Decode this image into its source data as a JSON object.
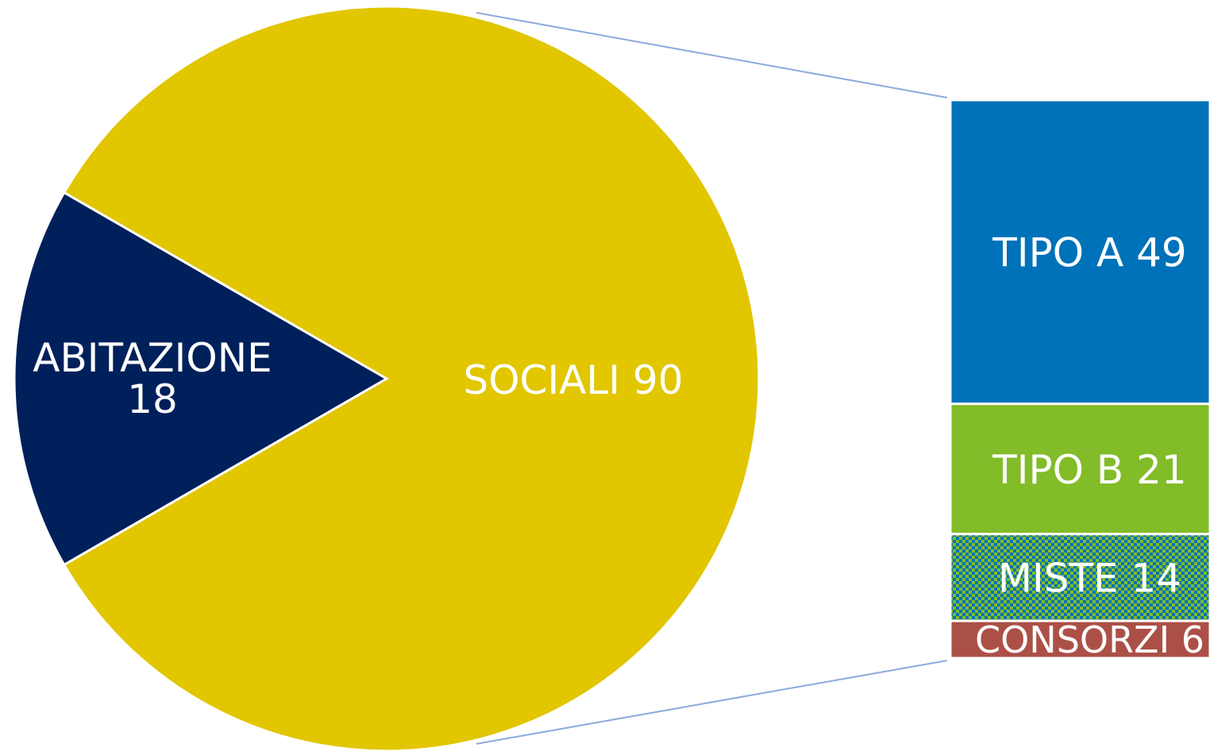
{
  "chart_data": {
    "type": "pie",
    "subtype": "pie-of-bar",
    "slices": [
      {
        "label": "ABITAZIONE",
        "value": 18,
        "color": "#00205b"
      },
      {
        "label": "SOCIALI",
        "value": 90,
        "color": "#e1c600"
      }
    ],
    "breakdown_of": "SOCIALI",
    "bar_segments": [
      {
        "label": "TIPO A",
        "value": 49,
        "color": "#0072b9"
      },
      {
        "label": "TIPO B",
        "value": 21,
        "color": "#82bc28"
      },
      {
        "label": "MISTE",
        "value": 14,
        "color": "#82bc28",
        "pattern": "checker",
        "pattern_color": "#0072b9"
      },
      {
        "label": "CONSORZI",
        "value": 6,
        "color": "#ab5047"
      }
    ],
    "connector_color": "#8eaadb"
  }
}
